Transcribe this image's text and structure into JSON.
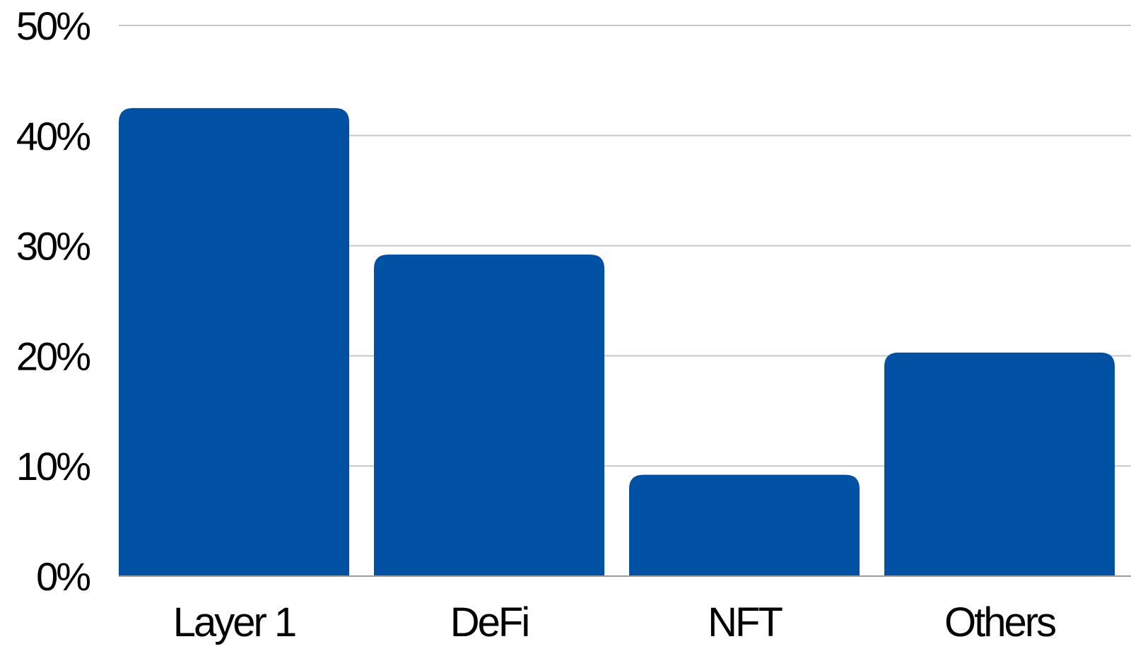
{
  "chart_data": {
    "type": "bar",
    "categories": [
      "Layer 1",
      "DeFi",
      "NFT",
      "Others"
    ],
    "values": [
      42.5,
      29.2,
      9.2,
      20.3
    ],
    "ylim": [
      0,
      50
    ],
    "yticks": [
      "0%",
      "10%",
      "20%",
      "30%",
      "40%",
      "50%"
    ],
    "title": "",
    "xlabel": "",
    "ylabel": "",
    "grid": true,
    "legend": "none",
    "bar_color": "#0050a3"
  }
}
